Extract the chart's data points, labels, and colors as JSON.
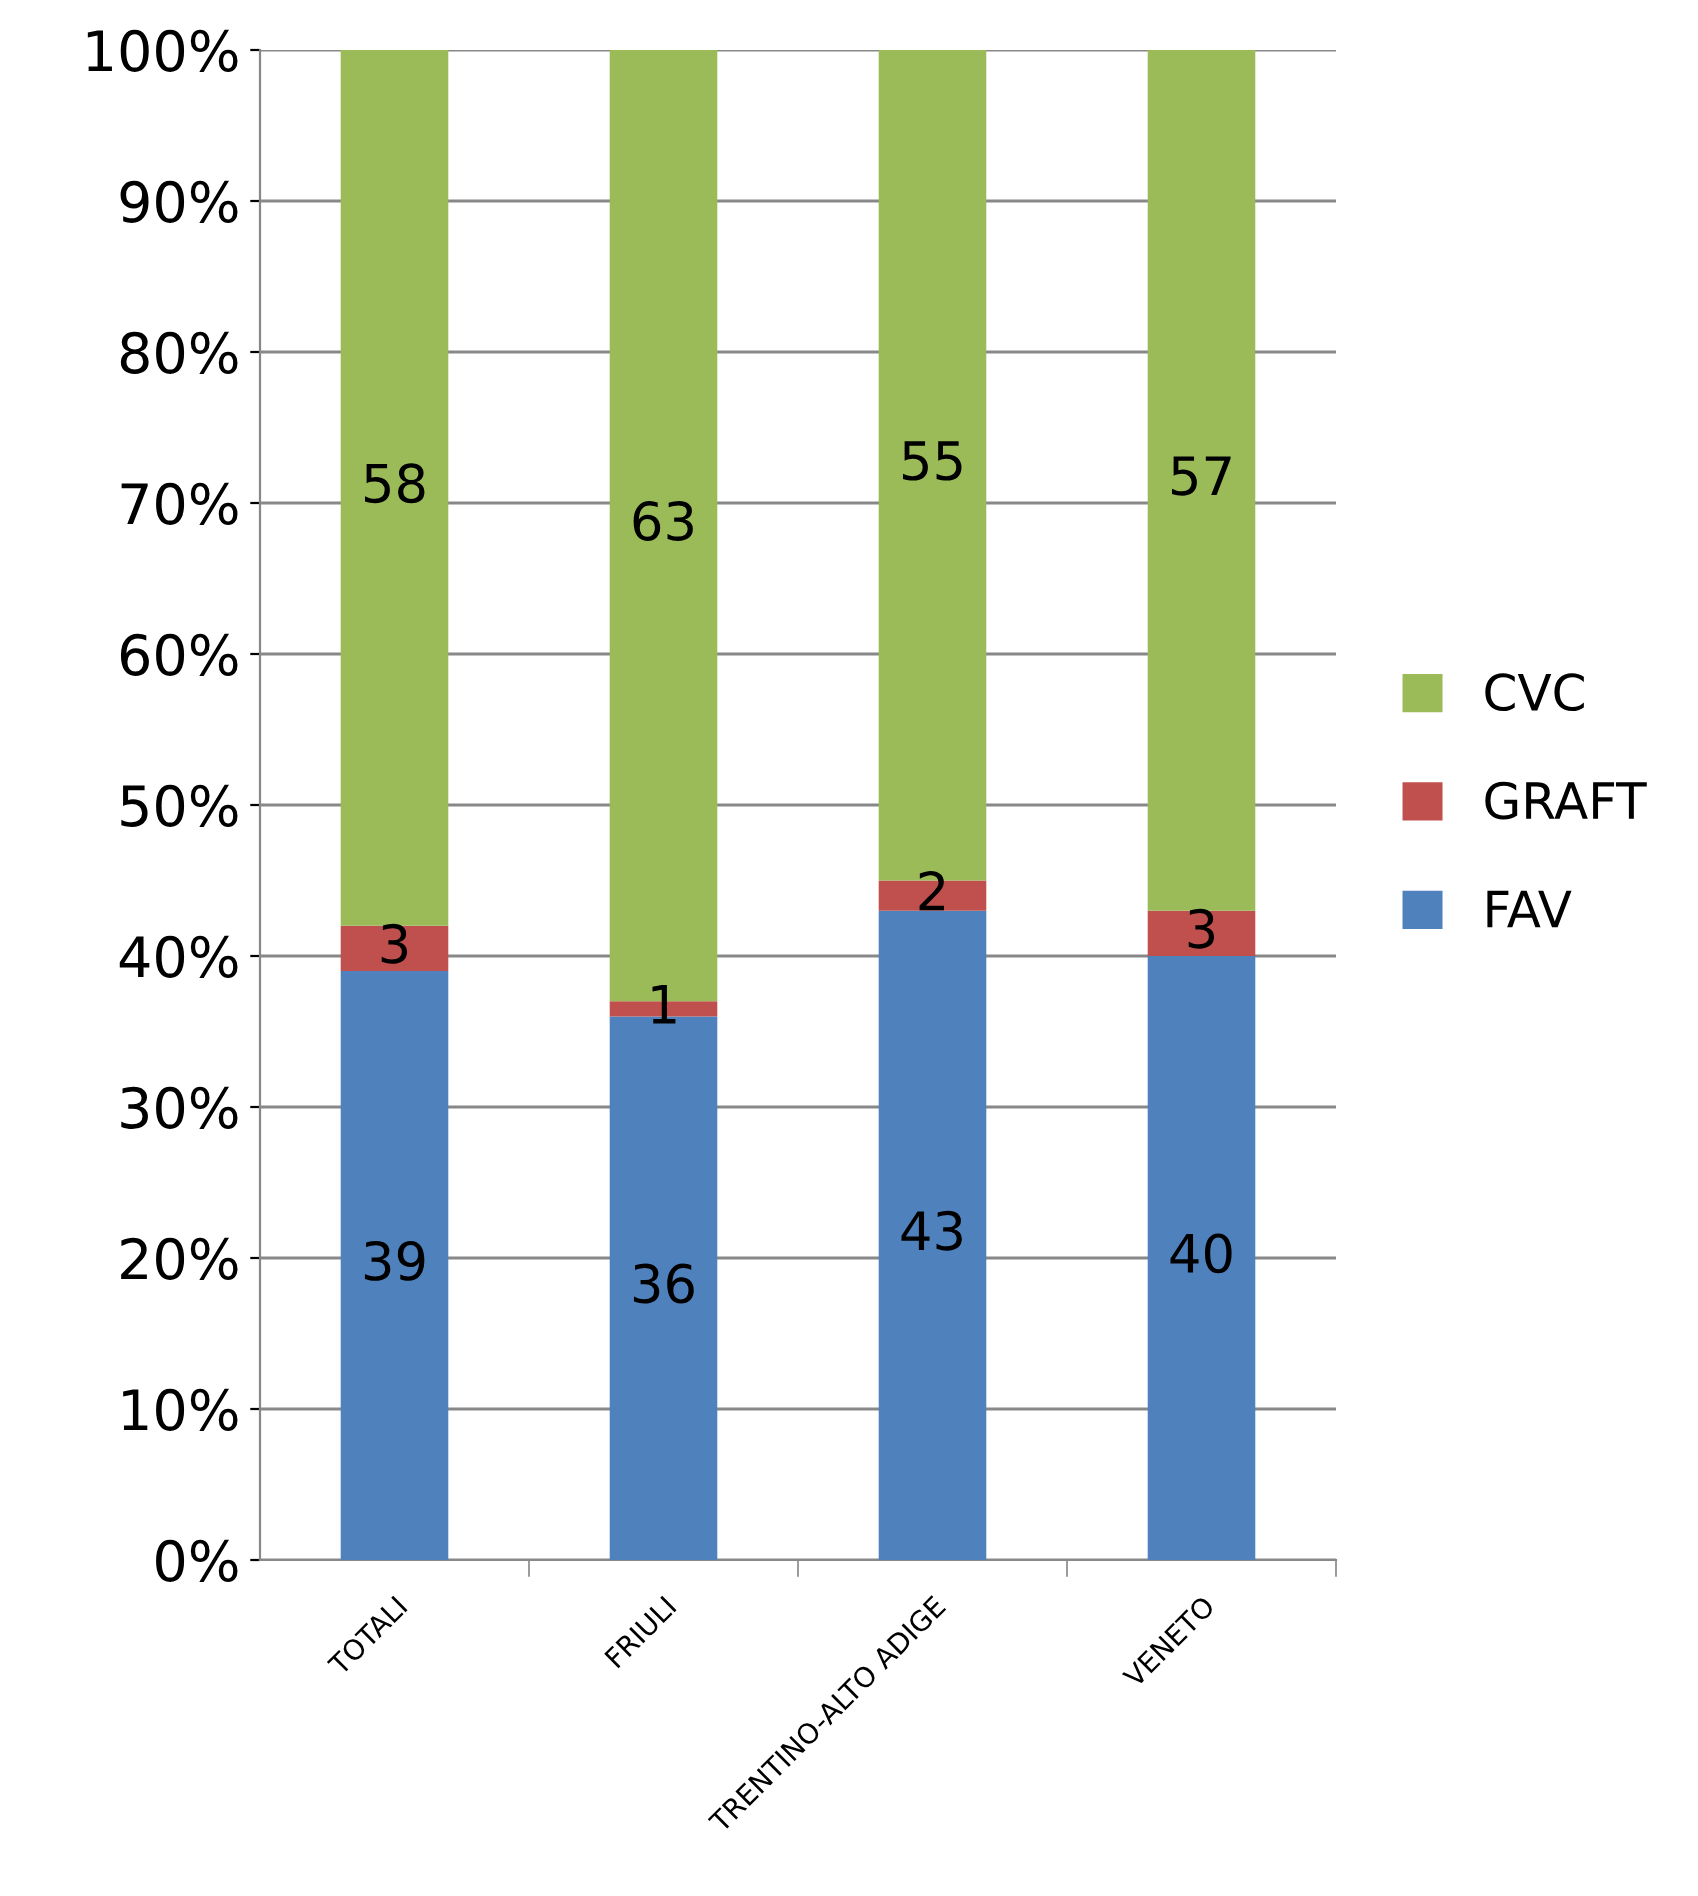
{
  "chart_data": {
    "type": "bar",
    "stacked": true,
    "categories": [
      "TOTALI",
      "FRIULI",
      "TRENTINO-ALTO ADIGE",
      "VENETO"
    ],
    "series": [
      {
        "name": "FAV",
        "color": "#4f81bd",
        "values": [
          39,
          36,
          43,
          40
        ]
      },
      {
        "name": "GRAFT",
        "color": "#c0504d",
        "values": [
          3,
          1,
          2,
          3
        ]
      },
      {
        "name": "CVC",
        "color": "#9bbb59",
        "values": [
          58,
          63,
          55,
          57
        ]
      }
    ],
    "ylim": [
      0,
      100
    ],
    "yticks": [
      {
        "value": 0,
        "label": "0%"
      },
      {
        "value": 10,
        "label": "10%"
      },
      {
        "value": 20,
        "label": "20%"
      },
      {
        "value": 30,
        "label": "30%"
      },
      {
        "value": 40,
        "label": "40%"
      },
      {
        "value": 50,
        "label": "50%"
      },
      {
        "value": 60,
        "label": "60%"
      },
      {
        "value": 70,
        "label": "70%"
      },
      {
        "value": 80,
        "label": "80%"
      },
      {
        "value": 90,
        "label": "90%"
      },
      {
        "value": 100,
        "label": "100%"
      }
    ],
    "grid": "y",
    "legend": "right",
    "data_labels": true
  }
}
